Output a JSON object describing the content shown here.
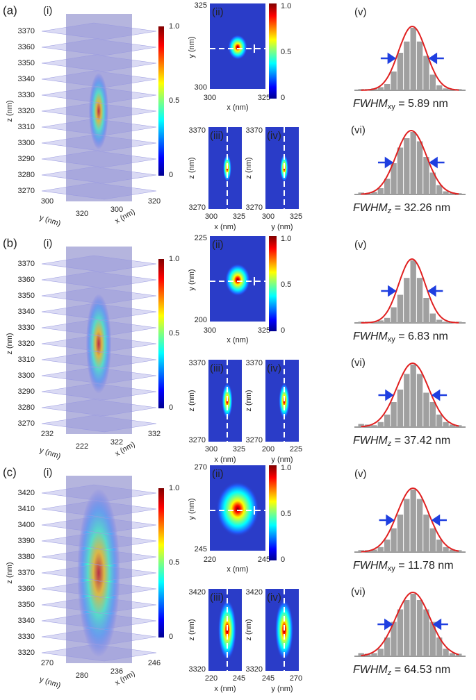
{
  "panels": [
    {
      "label": "(a)",
      "volume": {
        "label": "(i)",
        "z_label": "z (nm)",
        "y_label": "y (nm)",
        "x_label": "x (nm)",
        "z_ticks": [
          "3370",
          "3360",
          "3350",
          "3340",
          "3330",
          "3320",
          "3310",
          "3300",
          "3290",
          "3280",
          "3270"
        ],
        "y_ticks": [
          "300",
          "320"
        ],
        "x_ticks": [
          "300",
          "320"
        ],
        "colorbar_ticks": [
          "1.0",
          "0.5",
          "0"
        ]
      },
      "xy": {
        "label": "(ii)",
        "y_ticks": [
          "325",
          "300"
        ],
        "x_ticks": [
          "300",
          "325"
        ],
        "x_label": "x (nm)",
        "y_label": "y (nm)",
        "colorbar_ticks": [
          "1.0",
          "0.5",
          "0"
        ]
      },
      "xz": {
        "label": "(iii)",
        "z_ticks": [
          "3370",
          "3270"
        ],
        "x_ticks": [
          "300",
          "325"
        ],
        "x_label": "x (nm)",
        "z_label": "z (nm)"
      },
      "yz": {
        "label": "(iv)",
        "z_ticks": [
          "3370",
          "3270"
        ],
        "x_ticks": [
          "300",
          "325"
        ],
        "x_label": "y (nm)",
        "z_label": "z (nm)"
      },
      "hist_xy": {
        "label": "(v)",
        "symbol": "FWHM",
        "subscript": "xy",
        "value_text": " = 5.89 nm",
        "bars": [
          0.02,
          0.02,
          0.03,
          0.05,
          0.1,
          0.3,
          0.6,
          0.78,
          1.0,
          0.78,
          0.55,
          0.25,
          0.08,
          0.03,
          0.02,
          0.02
        ]
      },
      "hist_z": {
        "label": "(vi)",
        "symbol": "FWHM",
        "subscript": "z",
        "value_text": " = 32.26 nm",
        "bars": [
          0.03,
          0.02,
          0.04,
          0.1,
          0.25,
          0.5,
          0.75,
          0.9,
          1.0,
          0.85,
          0.6,
          0.35,
          0.15,
          0.05,
          0.03,
          0.02
        ]
      }
    },
    {
      "label": "(b)",
      "volume": {
        "label": "(i)",
        "z_label": "z (nm)",
        "y_label": "y (nm)",
        "x_label": "x (nm)",
        "z_ticks": [
          "3370",
          "3360",
          "3350",
          "3340",
          "3330",
          "3320",
          "3310",
          "3300",
          "3290",
          "3280",
          "3270"
        ],
        "y_ticks": [
          "232",
          "222"
        ],
        "x_ticks": [
          "322",
          "332"
        ],
        "colorbar_ticks": [
          "1.0",
          "0.5",
          "0"
        ]
      },
      "xy": {
        "label": "(ii)",
        "y_ticks": [
          "225",
          "200"
        ],
        "x_ticks": [
          "300",
          "325"
        ],
        "x_label": "x (nm)",
        "y_label": "y (nm)",
        "colorbar_ticks": [
          "1.0",
          "0.5",
          "0"
        ]
      },
      "xz": {
        "label": "(iii)",
        "z_ticks": [
          "3370",
          "3270"
        ],
        "x_ticks": [
          "300",
          "325"
        ],
        "x_label": "x (nm)",
        "z_label": "z (nm)"
      },
      "yz": {
        "label": "(iv)",
        "z_ticks": [
          "3370",
          "3270"
        ],
        "x_ticks": [
          "200",
          "225"
        ],
        "x_label": "y (nm)",
        "z_label": "z (nm)"
      },
      "hist_xy": {
        "label": "(v)",
        "symbol": "FWHM",
        "subscript": "xy",
        "value_text": " = 6.83 nm",
        "bars": [
          0.02,
          0.02,
          0.02,
          0.04,
          0.08,
          0.25,
          0.45,
          0.72,
          1.0,
          0.72,
          0.4,
          0.15,
          0.05,
          0.02,
          0.02,
          0.02
        ]
      },
      "hist_z": {
        "label": "(vi)",
        "symbol": "FWHM",
        "subscript": "z",
        "value_text": " = 37.42 nm",
        "bars": [
          0.05,
          0.04,
          0.03,
          0.08,
          0.2,
          0.4,
          0.6,
          0.85,
          1.0,
          0.85,
          0.55,
          0.4,
          0.2,
          0.08,
          0.04,
          0.03
        ]
      }
    },
    {
      "label": "(c)",
      "volume": {
        "label": "(i)",
        "z_label": "z (nm)",
        "y_label": "y (nm)",
        "x_label": "x (nm)",
        "z_ticks": [
          "3420",
          "3410",
          "3400",
          "3390",
          "3380",
          "3370",
          "3360",
          "3350",
          "3340",
          "3330",
          "3320"
        ],
        "y_ticks": [
          "270",
          "280"
        ],
        "x_ticks": [
          "236",
          "246"
        ],
        "colorbar_ticks": [
          "1.0",
          "0.5",
          "0"
        ]
      },
      "xy": {
        "label": "(ii)",
        "y_ticks": [
          "270",
          "245"
        ],
        "x_ticks": [
          "220",
          "245"
        ],
        "x_label": "x (nm)",
        "y_label": "y (nm)",
        "colorbar_ticks": [
          "1.0",
          "0.5",
          "0"
        ]
      },
      "xz": {
        "label": "(iii)",
        "z_ticks": [
          "3420",
          "3320"
        ],
        "x_ticks": [
          "220",
          "245"
        ],
        "x_label": "x (nm)",
        "z_label": "z (nm)"
      },
      "yz": {
        "label": "(iv)",
        "z_ticks": [
          "3420",
          "3320"
        ],
        "x_ticks": [
          "245",
          "270"
        ],
        "x_label": "y (nm)",
        "z_label": "z (nm)"
      },
      "hist_xy": {
        "label": "(v)",
        "symbol": "FWHM",
        "subscript": "xy",
        "value_text": " = 11.78 nm",
        "bars": [
          0.03,
          0.03,
          0.04,
          0.08,
          0.2,
          0.38,
          0.6,
          0.85,
          1.0,
          0.85,
          0.6,
          0.38,
          0.2,
          0.08,
          0.04,
          0.03
        ]
      },
      "hist_z": {
        "label": "(vi)",
        "symbol": "FWHM",
        "subscript": "z",
        "value_text": " = 64.53 nm",
        "bars": [
          0.05,
          0.04,
          0.05,
          0.12,
          0.3,
          0.55,
          0.75,
          0.9,
          1.0,
          0.9,
          0.75,
          0.55,
          0.3,
          0.12,
          0.05,
          0.04
        ]
      }
    }
  ]
}
